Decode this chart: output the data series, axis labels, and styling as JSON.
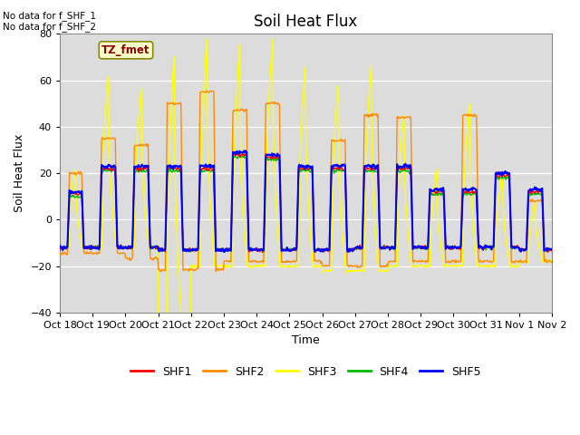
{
  "title": "Soil Heat Flux",
  "xlabel": "Time",
  "ylabel": "Soil Heat Flux",
  "ylim": [
    -40,
    80
  ],
  "yticks": [
    -40,
    -20,
    0,
    20,
    40,
    60,
    80
  ],
  "x_tick_labels": [
    "Oct 18",
    "Oct 19",
    "Oct 20",
    "Oct 21",
    "Oct 22",
    "Oct 23",
    "Oct 24",
    "Oct 25",
    "Oct 26",
    "Oct 27",
    "Oct 28",
    "Oct 29",
    "Oct 30",
    "Oct 31",
    "Nov 1",
    "Nov 2"
  ],
  "annotation_top": "No data for f_SHF_1\nNo data for f_SHF_2",
  "annotation_box": "TZ_fmet",
  "legend_labels": [
    "SHF1",
    "SHF2",
    "SHF3",
    "SHF4",
    "SHF5"
  ],
  "colors": {
    "SHF1": "#ff0000",
    "SHF2": "#ff8c00",
    "SHF3": "#ffff00",
    "SHF4": "#00bb00",
    "SHF5": "#0000ff"
  },
  "bg_color": "#dcdcdc",
  "linewidth": 1.0,
  "night_base": -12.0,
  "day_base": 12.0
}
